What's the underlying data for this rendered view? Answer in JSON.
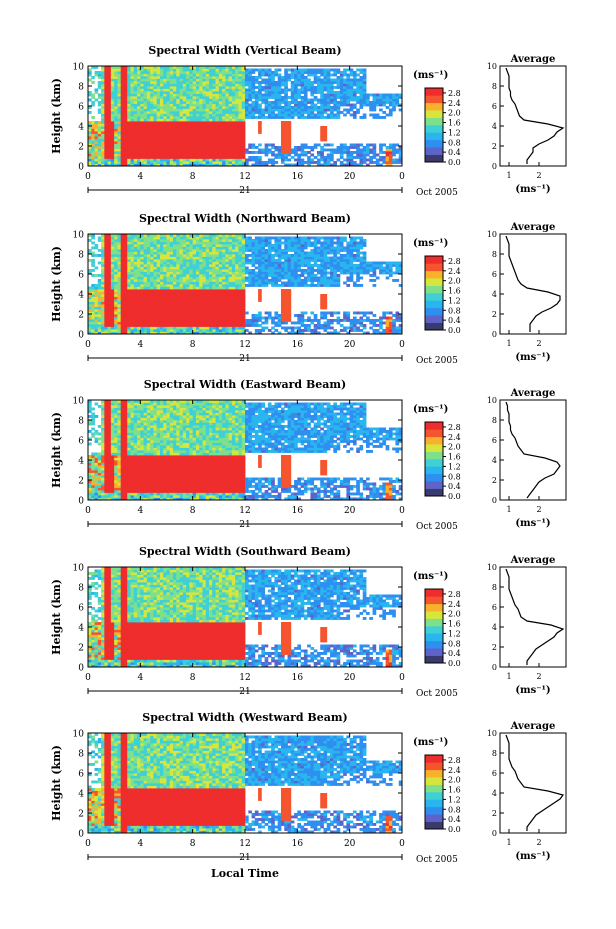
{
  "chart_data": [
    {
      "type": "heatmap",
      "title": "Spectral Width (Vertical Beam)",
      "ylabel": "Height (km)",
      "unit_label": "(ms⁻¹)",
      "date_label": "Oct 2005",
      "day_label": "21",
      "y_ticks": [
        "0",
        "2",
        "4",
        "6",
        "8",
        "10"
      ],
      "x_ticks": [
        "0",
        "4",
        "8",
        "12",
        "16",
        "20",
        "0"
      ],
      "colorbar_ticks": [
        "0.0",
        "0.4",
        "0.8",
        "1.2",
        "1.6",
        "2.0",
        "2.4",
        "2.8"
      ],
      "xlim": [
        0,
        24
      ],
      "ylim": [
        0,
        10
      ],
      "clim": [
        0,
        3.0
      ],
      "profile": {
        "title": "Average",
        "xlabel": "(ms⁻¹)",
        "x_ticks": [
          "1",
          "2"
        ],
        "y_ticks": [
          "0",
          "2",
          "4",
          "6",
          "8",
          "10"
        ],
        "xlim": [
          0.7,
          2.9
        ],
        "height": [
          0.2,
          0.6,
          1.0,
          1.4,
          1.8,
          2.2,
          2.6,
          3.0,
          3.4,
          3.8,
          4.2,
          4.6,
          5.0,
          5.4,
          5.8,
          6.2,
          6.6,
          7.0,
          7.4,
          7.8,
          8.2,
          8.6,
          9.0,
          9.4,
          9.8
        ],
        "width": [
          1.6,
          1.6,
          1.7,
          1.8,
          1.8,
          2.0,
          2.3,
          2.5,
          2.6,
          2.8,
          2.3,
          1.5,
          1.35,
          1.3,
          1.25,
          1.2,
          1.1,
          1.05,
          1.05,
          1.0,
          1.0,
          1.0,
          1.0,
          0.95,
          0.9
        ]
      }
    },
    {
      "type": "heatmap",
      "title": "Spectral Width (Northward Beam)",
      "ylabel": "Height (km)",
      "unit_label": "(ms⁻¹)",
      "date_label": "Oct 2005",
      "day_label": "21",
      "y_ticks": [
        "0",
        "2",
        "4",
        "6",
        "8",
        "10"
      ],
      "x_ticks": [
        "0",
        "4",
        "8",
        "12",
        "16",
        "20",
        "0"
      ],
      "colorbar_ticks": [
        "0.0",
        "0.4",
        "0.8",
        "1.2",
        "1.6",
        "2.0",
        "2.4",
        "2.8"
      ],
      "xlim": [
        0,
        24
      ],
      "ylim": [
        0,
        10
      ],
      "clim": [
        0,
        3.0
      ],
      "profile": {
        "title": "Average",
        "xlabel": "(ms⁻¹)",
        "x_ticks": [
          "1",
          "2"
        ],
        "y_ticks": [
          "0",
          "2",
          "4",
          "6",
          "8",
          "10"
        ],
        "xlim": [
          0.7,
          2.9
        ],
        "height": [
          0.2,
          0.6,
          1.0,
          1.4,
          1.8,
          2.2,
          2.6,
          3.0,
          3.4,
          3.8,
          4.2,
          4.6,
          5.0,
          5.4,
          5.8,
          6.2,
          6.6,
          7.0,
          7.4,
          7.8,
          8.2,
          8.6,
          9.0,
          9.4,
          9.8
        ],
        "width": [
          1.7,
          1.7,
          1.7,
          1.8,
          1.9,
          2.1,
          2.4,
          2.6,
          2.7,
          2.7,
          2.3,
          1.6,
          1.4,
          1.3,
          1.25,
          1.2,
          1.15,
          1.1,
          1.05,
          1.0,
          1.0,
          1.0,
          1.0,
          0.95,
          0.9
        ]
      }
    },
    {
      "type": "heatmap",
      "title": "Spectral Width (Eastward Beam)",
      "ylabel": "Height (km)",
      "unit_label": "(ms⁻¹)",
      "date_label": "Oct 2005",
      "day_label": "21",
      "y_ticks": [
        "0",
        "2",
        "4",
        "6",
        "8",
        "10"
      ],
      "x_ticks": [
        "0",
        "4",
        "8",
        "12",
        "16",
        "20",
        "0"
      ],
      "colorbar_ticks": [
        "0.0",
        "0.4",
        "0.8",
        "1.2",
        "1.6",
        "2.0",
        "2.4",
        "2.8"
      ],
      "xlim": [
        0,
        24
      ],
      "ylim": [
        0,
        10
      ],
      "clim": [
        0,
        3.0
      ],
      "profile": {
        "title": "Average",
        "xlabel": "(ms⁻¹)",
        "x_ticks": [
          "1",
          "2"
        ],
        "y_ticks": [
          "0",
          "2",
          "4",
          "6",
          "8",
          "10"
        ],
        "xlim": [
          0.7,
          2.9
        ],
        "height": [
          0.2,
          0.6,
          1.0,
          1.4,
          1.8,
          2.2,
          2.6,
          3.0,
          3.4,
          3.8,
          4.2,
          4.6,
          5.0,
          5.4,
          5.8,
          6.2,
          6.6,
          7.0,
          7.4,
          7.8,
          8.2,
          8.6,
          9.0,
          9.4,
          9.8
        ],
        "width": [
          1.6,
          1.7,
          1.8,
          1.9,
          2.0,
          2.2,
          2.5,
          2.6,
          2.7,
          2.6,
          2.2,
          1.5,
          1.4,
          1.3,
          1.25,
          1.2,
          1.1,
          1.05,
          1.05,
          1.0,
          1.0,
          1.0,
          0.95,
          0.95,
          0.9
        ]
      }
    },
    {
      "type": "heatmap",
      "title": "Spectral Width (Southward Beam)",
      "ylabel": "Height (km)",
      "unit_label": "(ms⁻¹)",
      "date_label": "Oct 2005",
      "day_label": "21",
      "y_ticks": [
        "0",
        "2",
        "4",
        "6",
        "8",
        "10"
      ],
      "x_ticks": [
        "0",
        "4",
        "8",
        "12",
        "16",
        "20",
        "0"
      ],
      "colorbar_ticks": [
        "0.0",
        "0.4",
        "0.8",
        "1.2",
        "1.6",
        "2.0",
        "2.4",
        "2.8"
      ],
      "xlim": [
        0,
        24
      ],
      "ylim": [
        0,
        10
      ],
      "clim": [
        0,
        3.0
      ],
      "profile": {
        "title": "Average",
        "xlabel": "(ms⁻¹)",
        "x_ticks": [
          "1",
          "2"
        ],
        "y_ticks": [
          "0",
          "2",
          "4",
          "6",
          "8",
          "10"
        ],
        "xlim": [
          0.7,
          2.9
        ],
        "height": [
          0.2,
          0.6,
          1.0,
          1.4,
          1.8,
          2.2,
          2.6,
          3.0,
          3.4,
          3.8,
          4.2,
          4.6,
          5.0,
          5.4,
          5.8,
          6.2,
          6.6,
          7.0,
          7.4,
          7.8,
          8.2,
          8.6,
          9.0,
          9.4,
          9.8
        ],
        "width": [
          1.6,
          1.6,
          1.7,
          1.8,
          1.9,
          2.1,
          2.3,
          2.5,
          2.6,
          2.8,
          2.4,
          1.6,
          1.4,
          1.35,
          1.3,
          1.2,
          1.15,
          1.1,
          1.05,
          1.0,
          1.0,
          1.0,
          1.0,
          0.95,
          0.9
        ]
      }
    },
    {
      "type": "heatmap",
      "title": "Spectral Width (Westward Beam)",
      "ylabel": "Height (km)",
      "unit_label": "(ms⁻¹)",
      "date_label": "Oct 2005",
      "day_label": "21",
      "xlabel": "Local Time",
      "y_ticks": [
        "0",
        "2",
        "4",
        "6",
        "8",
        "10"
      ],
      "x_ticks": [
        "0",
        "4",
        "8",
        "12",
        "16",
        "20",
        "0"
      ],
      "colorbar_ticks": [
        "0.0",
        "0.4",
        "0.8",
        "1.2",
        "1.6",
        "2.0",
        "2.4",
        "2.8"
      ],
      "xlim": [
        0,
        24
      ],
      "ylim": [
        0,
        10
      ],
      "clim": [
        0,
        3.0
      ],
      "profile": {
        "title": "Average",
        "xlabel": "(ms⁻¹)",
        "x_ticks": [
          "1",
          "2"
        ],
        "y_ticks": [
          "0",
          "2",
          "4",
          "6",
          "8",
          "10"
        ],
        "xlim": [
          0.7,
          2.9
        ],
        "height": [
          0.2,
          0.6,
          1.0,
          1.4,
          1.8,
          2.2,
          2.6,
          3.0,
          3.4,
          3.8,
          4.2,
          4.6,
          5.0,
          5.4,
          5.8,
          6.2,
          6.6,
          7.0,
          7.4,
          7.8,
          8.2,
          8.6,
          9.0,
          9.4,
          9.8
        ],
        "width": [
          1.6,
          1.6,
          1.7,
          1.8,
          1.9,
          2.1,
          2.3,
          2.5,
          2.7,
          2.8,
          2.3,
          1.5,
          1.4,
          1.3,
          1.25,
          1.2,
          1.1,
          1.05,
          1.0,
          1.0,
          1.0,
          1.0,
          1.0,
          0.95,
          0.9
        ]
      }
    }
  ]
}
